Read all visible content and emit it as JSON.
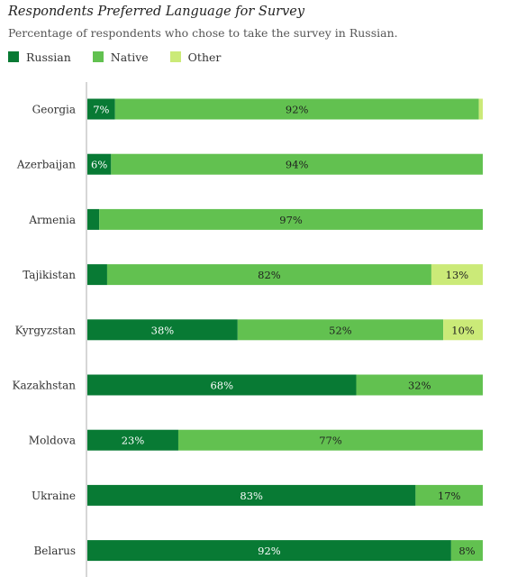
{
  "chart_data": {
    "type": "bar",
    "stacked": true,
    "orientation": "horizontal",
    "title": "Respondents Preferred Language for Survey",
    "subtitle": "Percentage of respondents who chose to take the survey in Russian.",
    "categories": [
      "Georgia",
      "Azerbaijan",
      "Armenia",
      "Tajikistan",
      "Kyrgyzstan",
      "Kazakhstan",
      "Moldova",
      "Ukraine",
      "Belarus"
    ],
    "series": [
      {
        "name": "Russian",
        "color": "#087a34",
        "values": [
          7,
          6,
          3,
          5,
          38,
          68,
          23,
          83,
          92
        ],
        "labels": [
          "7%",
          "6%",
          "",
          "",
          "38%",
          "68%",
          "23%",
          "83%",
          "92%"
        ]
      },
      {
        "name": "Native",
        "color": "#62c150",
        "values": [
          92,
          94,
          97,
          82,
          52,
          32,
          77,
          17,
          8
        ],
        "labels": [
          "92%",
          "94%",
          "97%",
          "82%",
          "52%",
          "32%",
          "77%",
          "17%",
          "8%"
        ]
      },
      {
        "name": "Other",
        "color": "#cbea78",
        "values": [
          1,
          0,
          0,
          13,
          10,
          0,
          0,
          0,
          0
        ],
        "labels": [
          "",
          "",
          "",
          "13%",
          "10%",
          "",
          "",
          "",
          ""
        ]
      }
    ],
    "xlim": [
      0,
      100
    ],
    "legend_position": "top-left",
    "grid": false,
    "axis_color": "#c8c8c8"
  }
}
